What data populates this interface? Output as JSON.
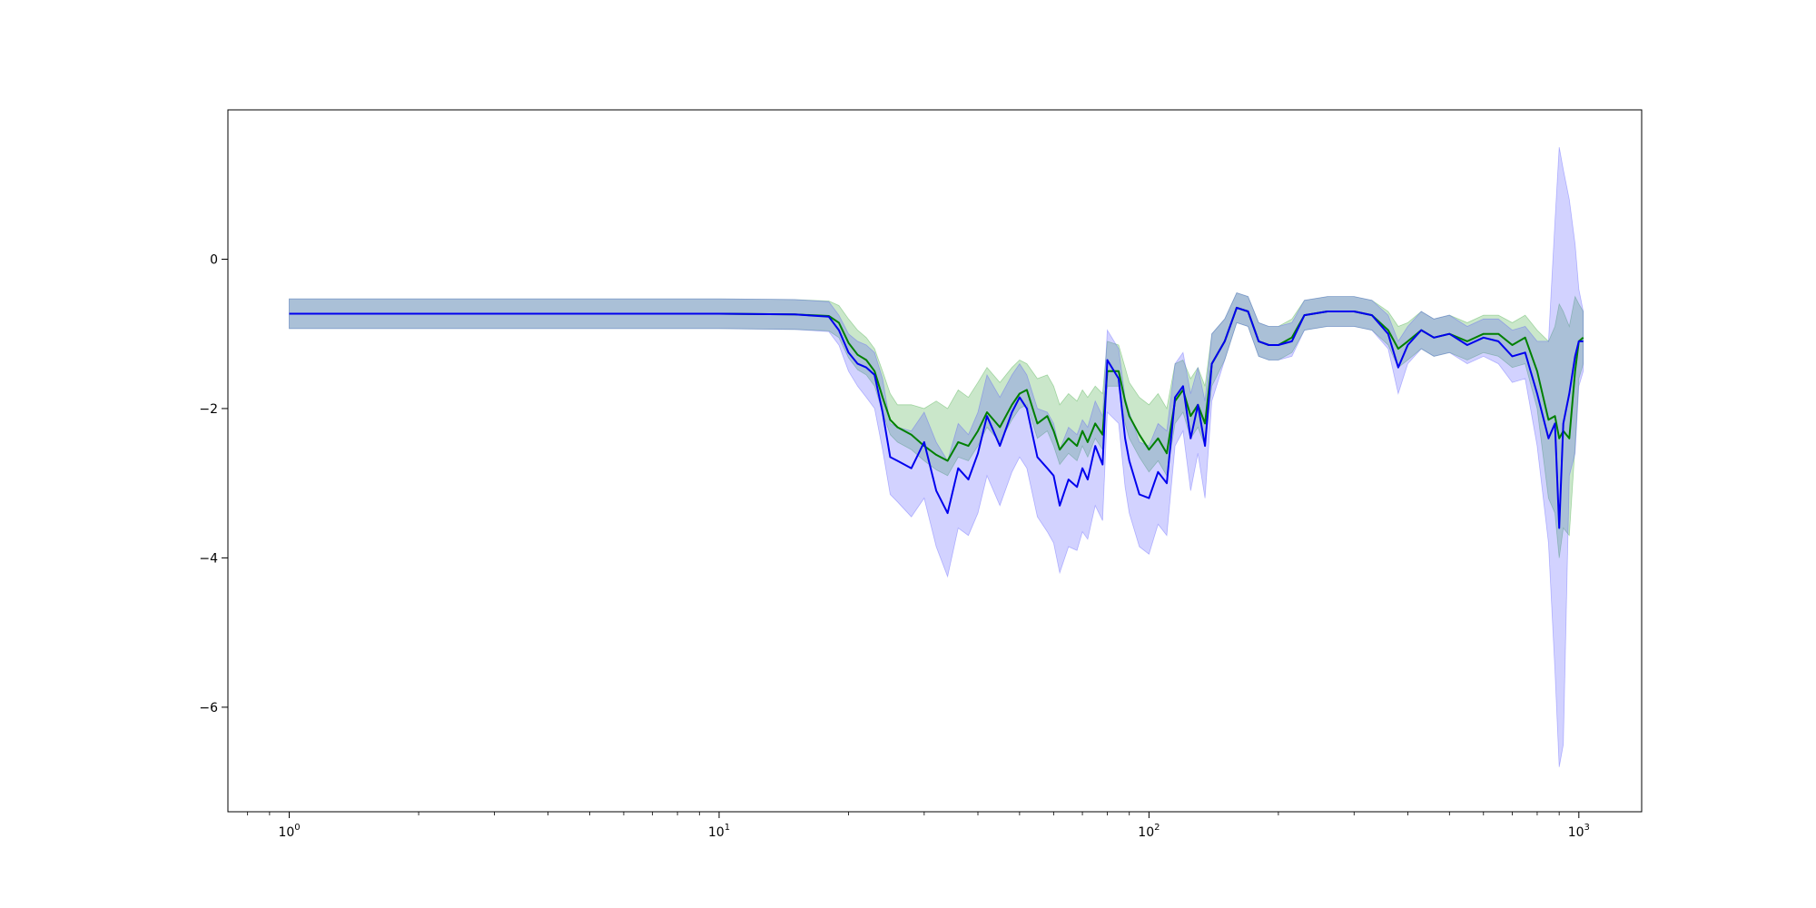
{
  "chart_data": {
    "type": "line",
    "xscale": "log",
    "xlim": [
      0.72,
      1400
    ],
    "ylim": [
      -7.4,
      2.0
    ],
    "xticks": [
      {
        "value": 1,
        "base": "10",
        "exp": "0"
      },
      {
        "value": 10,
        "base": "10",
        "exp": "1"
      },
      {
        "value": 100,
        "base": "10",
        "exp": "2"
      },
      {
        "value": 1000,
        "base": "10",
        "exp": "3"
      }
    ],
    "yticks": [
      {
        "value": 0,
        "label": "0"
      },
      {
        "value": -2,
        "label": "−2"
      },
      {
        "value": -4,
        "label": "−4"
      },
      {
        "value": -6,
        "label": "−6"
      }
    ],
    "grid": false,
    "series": [
      {
        "color": "#008000",
        "band_color": "#2ca02c",
        "x": [
          1,
          5,
          10,
          15,
          18,
          19,
          20,
          21,
          22,
          23,
          24,
          25,
          26,
          28,
          30,
          32,
          34,
          36,
          38,
          40,
          42,
          45,
          48,
          50,
          52,
          55,
          58,
          60,
          62,
          65,
          68,
          70,
          72,
          75,
          78,
          80,
          85,
          88,
          90,
          95,
          100,
          105,
          110,
          115,
          120,
          125,
          130,
          135,
          140,
          150,
          160,
          170,
          180,
          190,
          200,
          215,
          230,
          260,
          300,
          330,
          360,
          380,
          400,
          430,
          460,
          500,
          550,
          600,
          650,
          700,
          750,
          800,
          850,
          880,
          900,
          920,
          950,
          980,
          1000,
          1024
        ],
        "y": [
          -0.73,
          -0.73,
          -0.73,
          -0.74,
          -0.76,
          -0.85,
          -1.12,
          -1.28,
          -1.35,
          -1.5,
          -1.85,
          -2.15,
          -2.25,
          -2.35,
          -2.5,
          -2.62,
          -2.7,
          -2.45,
          -2.5,
          -2.3,
          -2.05,
          -2.25,
          -1.95,
          -1.8,
          -1.75,
          -2.2,
          -2.1,
          -2.3,
          -2.55,
          -2.4,
          -2.5,
          -2.3,
          -2.45,
          -2.2,
          -2.35,
          -1.5,
          -1.5,
          -1.9,
          -2.1,
          -2.35,
          -2.55,
          -2.4,
          -2.6,
          -1.9,
          -1.75,
          -2.1,
          -1.95,
          -2.2,
          -1.4,
          -1.1,
          -0.65,
          -0.7,
          -1.1,
          -1.15,
          -1.15,
          -1.05,
          -0.75,
          -0.7,
          -0.7,
          -0.75,
          -0.95,
          -1.2,
          -1.1,
          -0.95,
          -1.05,
          -1.0,
          -1.1,
          -1.0,
          -1.0,
          -1.15,
          -1.05,
          -1.5,
          -2.15,
          -2.1,
          -2.4,
          -2.3,
          -2.4,
          -1.5,
          -1.1,
          -1.05
        ],
        "lower": [
          -0.93,
          -0.93,
          -0.93,
          -0.94,
          -0.96,
          -1.05,
          -1.32,
          -1.48,
          -1.55,
          -1.7,
          -2.05,
          -2.35,
          -2.45,
          -2.55,
          -2.7,
          -2.82,
          -2.9,
          -2.65,
          -2.7,
          -2.5,
          -2.25,
          -2.45,
          -2.15,
          -2.0,
          -1.95,
          -2.4,
          -2.3,
          -2.5,
          -2.75,
          -2.6,
          -2.7,
          -2.5,
          -2.65,
          -2.4,
          -2.55,
          -1.7,
          -1.7,
          -2.2,
          -2.4,
          -2.65,
          -2.85,
          -2.7,
          -2.9,
          -2.2,
          -2.05,
          -2.4,
          -2.25,
          -2.5,
          -1.7,
          -1.35,
          -0.85,
          -0.9,
          -1.3,
          -1.35,
          -1.35,
          -1.25,
          -0.95,
          -0.9,
          -0.9,
          -0.95,
          -1.15,
          -1.45,
          -1.35,
          -1.2,
          -1.3,
          -1.25,
          -1.35,
          -1.25,
          -1.3,
          -1.45,
          -1.4,
          -2.0,
          -3.2,
          -3.4,
          -4.0,
          -3.6,
          -3.7,
          -2.5,
          -1.6,
          -1.4
        ],
        "upper": [
          -0.53,
          -0.53,
          -0.53,
          -0.54,
          -0.56,
          -0.62,
          -0.8,
          -0.95,
          -1.05,
          -1.2,
          -1.5,
          -1.8,
          -1.95,
          -1.95,
          -2.0,
          -1.9,
          -2.0,
          -1.75,
          -1.85,
          -1.65,
          -1.45,
          -1.65,
          -1.45,
          -1.35,
          -1.4,
          -1.6,
          -1.55,
          -1.7,
          -1.95,
          -1.8,
          -1.9,
          -1.75,
          -1.85,
          -1.7,
          -1.8,
          -1.1,
          -1.15,
          -1.45,
          -1.65,
          -1.85,
          -1.95,
          -1.8,
          -2.0,
          -1.4,
          -1.35,
          -1.6,
          -1.45,
          -1.7,
          -1.0,
          -0.8,
          -0.45,
          -0.5,
          -0.85,
          -0.9,
          -0.9,
          -0.8,
          -0.55,
          -0.5,
          -0.5,
          -0.55,
          -0.7,
          -0.9,
          -0.85,
          -0.7,
          -0.8,
          -0.75,
          -0.85,
          -0.75,
          -0.75,
          -0.85,
          -0.75,
          -0.95,
          -1.1,
          -0.9,
          -0.6,
          -0.7,
          -0.9,
          -0.5,
          -0.6,
          -0.7
        ]
      },
      {
        "color": "#0000ee",
        "band_color": "#4a4aff",
        "x": [
          1,
          5,
          10,
          15,
          18,
          19,
          20,
          21,
          22,
          23,
          24,
          25,
          26,
          28,
          30,
          32,
          34,
          36,
          38,
          40,
          42,
          45,
          48,
          50,
          52,
          55,
          58,
          60,
          62,
          65,
          68,
          70,
          72,
          75,
          78,
          80,
          85,
          88,
          90,
          95,
          100,
          105,
          110,
          115,
          120,
          125,
          130,
          135,
          140,
          150,
          160,
          170,
          180,
          190,
          200,
          215,
          230,
          260,
          300,
          330,
          360,
          380,
          400,
          430,
          460,
          500,
          550,
          600,
          650,
          700,
          750,
          800,
          850,
          880,
          900,
          920,
          950,
          980,
          1000,
          1024
        ],
        "y": [
          -0.73,
          -0.73,
          -0.73,
          -0.74,
          -0.77,
          -0.95,
          -1.25,
          -1.4,
          -1.45,
          -1.55,
          -2.05,
          -2.65,
          -2.7,
          -2.8,
          -2.45,
          -3.1,
          -3.4,
          -2.8,
          -2.95,
          -2.6,
          -2.1,
          -2.5,
          -2.05,
          -1.85,
          -2.0,
          -2.65,
          -2.8,
          -2.9,
          -3.3,
          -2.95,
          -3.05,
          -2.8,
          -2.95,
          -2.5,
          -2.75,
          -1.35,
          -1.6,
          -2.4,
          -2.7,
          -3.15,
          -3.2,
          -2.85,
          -3.0,
          -1.85,
          -1.7,
          -2.4,
          -1.95,
          -2.5,
          -1.4,
          -1.1,
          -0.65,
          -0.7,
          -1.1,
          -1.15,
          -1.15,
          -1.1,
          -0.75,
          -0.7,
          -0.7,
          -0.75,
          -1.0,
          -1.45,
          -1.15,
          -0.95,
          -1.05,
          -1.0,
          -1.15,
          -1.05,
          -1.1,
          -1.3,
          -1.25,
          -1.8,
          -2.4,
          -2.2,
          -3.6,
          -2.2,
          -1.8,
          -1.3,
          -1.1,
          -1.1
        ],
        "lower": [
          -0.93,
          -0.93,
          -0.93,
          -0.94,
          -0.97,
          -1.15,
          -1.5,
          -1.7,
          -1.85,
          -2.0,
          -2.55,
          -3.15,
          -3.25,
          -3.45,
          -3.2,
          -3.85,
          -4.25,
          -3.6,
          -3.7,
          -3.4,
          -2.9,
          -3.3,
          -2.85,
          -2.65,
          -2.8,
          -3.45,
          -3.65,
          -3.8,
          -4.2,
          -3.85,
          -3.9,
          -3.65,
          -3.75,
          -3.3,
          -3.5,
          -2.05,
          -2.2,
          -3.05,
          -3.4,
          -3.85,
          -3.95,
          -3.55,
          -3.7,
          -2.5,
          -2.3,
          -3.1,
          -2.6,
          -3.2,
          -1.9,
          -1.35,
          -0.85,
          -0.9,
          -1.3,
          -1.35,
          -1.35,
          -1.3,
          -0.95,
          -0.9,
          -0.9,
          -0.95,
          -1.2,
          -1.8,
          -1.4,
          -1.2,
          -1.3,
          -1.25,
          -1.4,
          -1.3,
          -1.4,
          -1.65,
          -1.6,
          -2.5,
          -3.8,
          -5.5,
          -6.8,
          -6.5,
          -2.9,
          -2.6,
          -1.7,
          -1.5
        ],
        "upper": [
          -0.53,
          -0.53,
          -0.53,
          -0.54,
          -0.57,
          -0.75,
          -1.0,
          -1.1,
          -1.15,
          -1.25,
          -1.6,
          -2.2,
          -2.25,
          -2.3,
          -2.05,
          -2.45,
          -2.7,
          -2.2,
          -2.35,
          -2.05,
          -1.55,
          -1.85,
          -1.55,
          -1.4,
          -1.55,
          -2.0,
          -2.05,
          -2.2,
          -2.55,
          -2.25,
          -2.35,
          -2.15,
          -2.25,
          -1.9,
          -2.1,
          -0.95,
          -1.2,
          -1.85,
          -2.05,
          -2.45,
          -2.5,
          -2.2,
          -2.3,
          -1.4,
          -1.25,
          -1.8,
          -1.45,
          -1.9,
          -1.0,
          -0.8,
          -0.45,
          -0.5,
          -0.85,
          -0.9,
          -0.9,
          -0.85,
          -0.55,
          -0.5,
          -0.5,
          -0.55,
          -0.75,
          -1.1,
          -0.9,
          -0.7,
          -0.8,
          -0.75,
          -0.9,
          -0.8,
          -0.8,
          -0.95,
          -0.9,
          -1.1,
          -1.1,
          0.5,
          1.5,
          1.2,
          0.8,
          0.2,
          -0.4,
          -0.7
        ]
      }
    ]
  }
}
